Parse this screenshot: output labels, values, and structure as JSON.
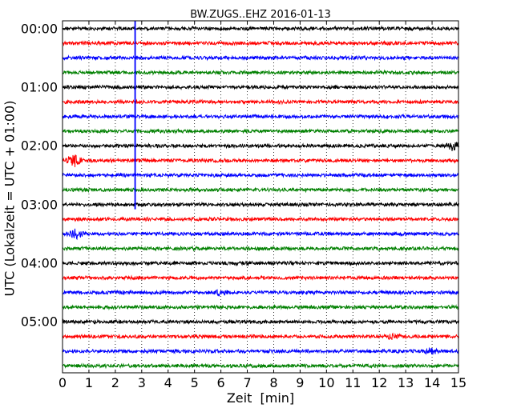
{
  "chart_data": {
    "type": "line",
    "title": "BW.ZUGS..EHZ 2016-01-13",
    "xlabel": "Zeit  [min]",
    "ylabel": "UTC (Lokalzeit = UTC + 01:00)",
    "xlim": [
      0,
      15
    ],
    "xticks": [
      "0",
      "1",
      "2",
      "3",
      "4",
      "5",
      "6",
      "7",
      "8",
      "9",
      "10",
      "11",
      "12",
      "13",
      "14",
      "15"
    ],
    "yticks": [
      "00:00",
      "01:00",
      "02:00",
      "03:00",
      "04:00",
      "05:00"
    ],
    "grid": true,
    "trace_interval_min": 15,
    "trace_count": 24,
    "trace_colors": [
      "#000000",
      "#ff0000",
      "#0000ff",
      "#008000"
    ],
    "event_marker": {
      "x": 2.75,
      "color": "#0000ff",
      "spans_traces": [
        0,
        12
      ]
    },
    "events": [
      {
        "trace": 9,
        "x": 0.45,
        "amplitude": "high"
      },
      {
        "trace": 8,
        "x": 14.8,
        "amplitude": "medium"
      },
      {
        "trace": 14,
        "x": 0.5,
        "amplitude": "medium"
      },
      {
        "trace": 18,
        "x": 6.0,
        "amplitude": "low"
      },
      {
        "trace": 22,
        "x": 14.0,
        "amplitude": "low"
      },
      {
        "trace": 21,
        "x": 12.5,
        "amplitude": "low"
      }
    ]
  }
}
